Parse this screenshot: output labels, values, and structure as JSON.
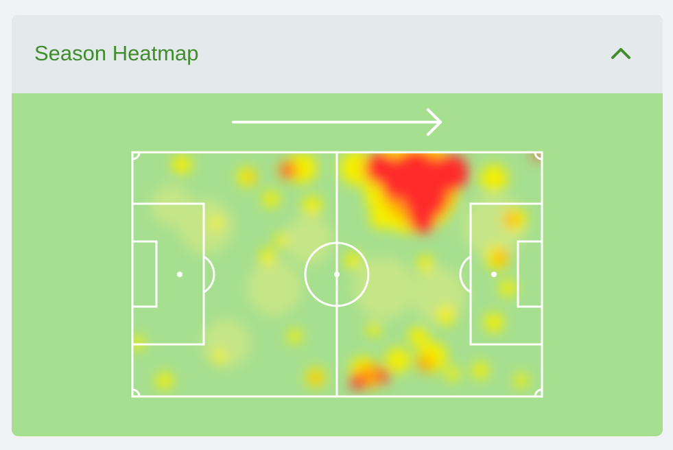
{
  "header": {
    "title": "Season Heatmap"
  }
}
